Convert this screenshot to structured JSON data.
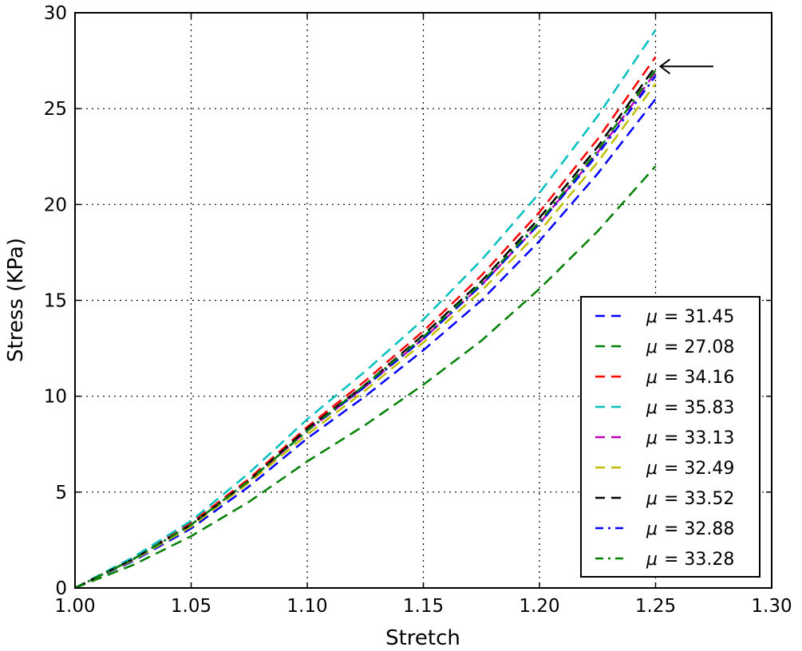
{
  "chart_data": {
    "type": "line",
    "title": "",
    "xlabel": "Stretch",
    "ylabel": "Stress (KPa)",
    "xlim": [
      1.0,
      1.3
    ],
    "ylim": [
      0,
      30
    ],
    "xticks": [
      "1.00",
      "1.05",
      "1.10",
      "1.15",
      "1.20",
      "1.25",
      "1.30"
    ],
    "yticks": [
      "0",
      "5",
      "10",
      "15",
      "20",
      "25",
      "30"
    ],
    "grid": true,
    "legend_position": "lower-right",
    "annotation": {
      "type": "arrow",
      "points_to": {
        "x": 1.25,
        "y": 27.2
      },
      "from": {
        "x": 1.268,
        "y": 27.2
      }
    },
    "x": [
      1.0,
      1.025,
      1.05,
      1.075,
      1.1,
      1.125,
      1.15,
      1.175,
      1.2,
      1.225,
      1.25
    ],
    "series": [
      {
        "name": "μ = 31.45",
        "mu_label": "μ",
        "value_label": "= 31.45",
        "color": "#0000ff",
        "style": "dashed",
        "values": [
          0,
          1.4,
          3.1,
          5.3,
          7.8,
          10.0,
          12.4,
          15.0,
          18.1,
          21.6,
          25.5
        ]
      },
      {
        "name": "μ = 27.08",
        "mu_label": "μ",
        "value_label": "= 27.08",
        "color": "#008000",
        "style": "dashed",
        "values": [
          0,
          1.2,
          2.7,
          4.5,
          6.6,
          8.5,
          10.6,
          12.9,
          15.6,
          18.6,
          22.0
        ]
      },
      {
        "name": "μ = 34.16",
        "mu_label": "μ",
        "value_label": "= 34.16",
        "color": "#ff0000",
        "style": "dashed",
        "values": [
          0,
          1.5,
          3.4,
          5.7,
          8.4,
          10.8,
          13.4,
          16.3,
          19.6,
          23.4,
          27.7
        ]
      },
      {
        "name": "μ = 35.83",
        "mu_label": "μ",
        "value_label": "= 35.83",
        "color": "#00bfbf",
        "style": "dashed",
        "values": [
          0,
          1.6,
          3.5,
          6.0,
          8.8,
          11.3,
          14.0,
          17.1,
          20.6,
          24.6,
          29.1
        ]
      },
      {
        "name": "μ = 33.13",
        "mu_label": "μ",
        "value_label": "= 33.13",
        "color": "#bf00bf",
        "style": "dashed",
        "values": [
          0,
          1.5,
          3.3,
          5.6,
          8.2,
          10.5,
          13.0,
          15.8,
          19.0,
          22.7,
          26.9
        ]
      },
      {
        "name": "μ = 32.49",
        "mu_label": "μ",
        "value_label": "= 32.49",
        "color": "#bfbf00",
        "style": "dashed",
        "values": [
          0,
          1.45,
          3.2,
          5.5,
          8.0,
          10.3,
          12.8,
          15.5,
          18.6,
          22.2,
          26.3
        ]
      },
      {
        "name": "μ = 33.52",
        "mu_label": "μ",
        "value_label": "= 33.52",
        "color": "#000000",
        "style": "dashed",
        "values": [
          0,
          1.5,
          3.3,
          5.6,
          8.3,
          10.6,
          13.2,
          16.0,
          19.3,
          23.0,
          27.2
        ]
      },
      {
        "name": "μ = 32.88",
        "mu_label": "μ",
        "value_label": "= 32.88",
        "color": "#0000ff",
        "style": "dashdot",
        "values": [
          0,
          1.5,
          3.3,
          5.6,
          8.2,
          10.5,
          13.0,
          15.8,
          19.0,
          22.6,
          26.7
        ]
      },
      {
        "name": "μ = 33.28",
        "mu_label": "μ",
        "value_label": "= 33.28",
        "color": "#008000",
        "style": "dashdot",
        "values": [
          0,
          1.5,
          3.3,
          5.6,
          8.2,
          10.6,
          13.1,
          15.9,
          19.1,
          22.8,
          27.0
        ]
      }
    ]
  }
}
